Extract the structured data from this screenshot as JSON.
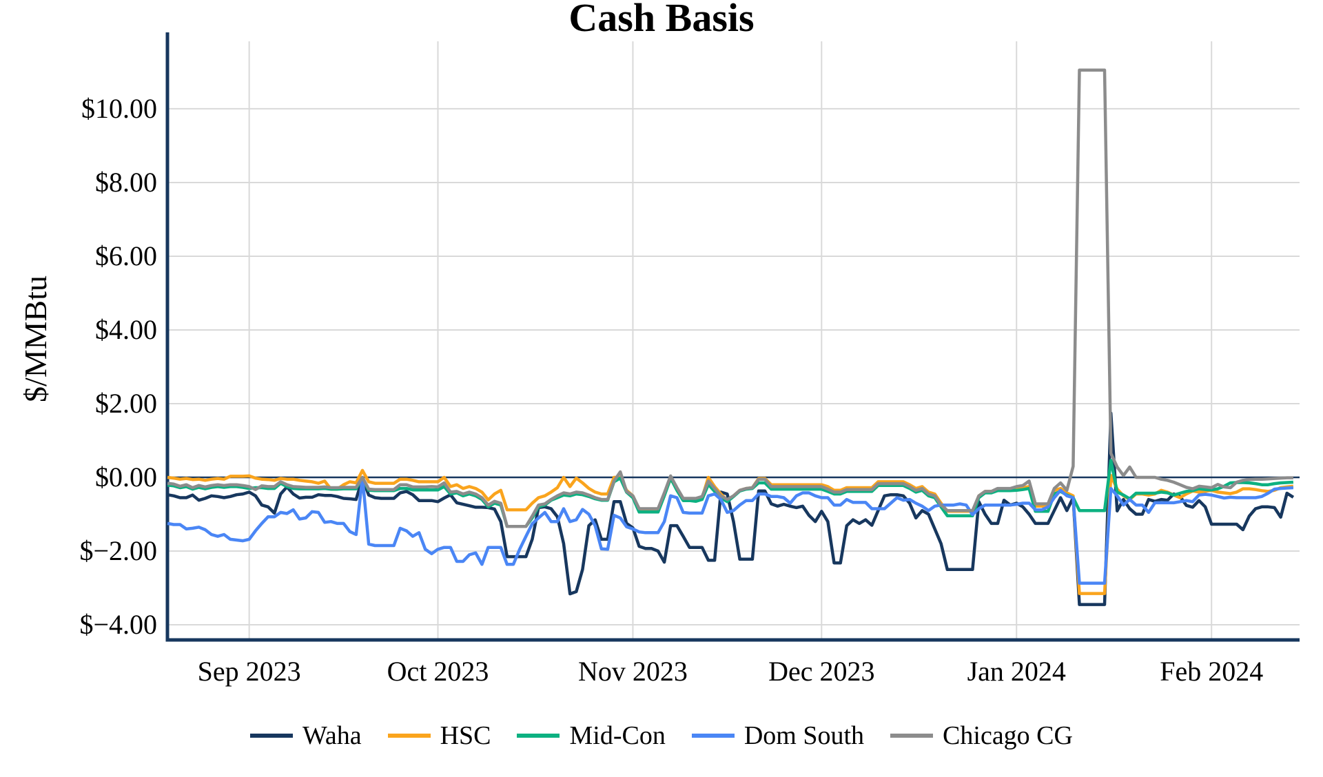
{
  "page": {
    "title": "Cash Basis"
  },
  "colors": {
    "background": "#ffffff",
    "axis": "#17375e",
    "zero_line": "#17375e",
    "grid": "#d9d9d9",
    "text": "#000000"
  },
  "chart_data": {
    "type": "line",
    "title": "Cash Basis",
    "xlabel": "",
    "ylabel": "$/MMBtu",
    "grid": true,
    "legend_position": "bottom",
    "x_description": "daily values from 2023-08-19 to 2024-02-14 (index 0..179)",
    "n_points": 180,
    "x_tick_positions": [
      13,
      43,
      74,
      104,
      135,
      166
    ],
    "x_tick_labels": [
      "Sep 2023",
      "Oct 2023",
      "Nov 2023",
      "Dec 2023",
      "Jan 2024",
      "Feb 2024"
    ],
    "y_tick_values": [
      10,
      8,
      6,
      4,
      2,
      0,
      -2,
      -4
    ],
    "y_tick_labels": [
      "$10.00",
      "$8.00",
      "$6.00",
      "$4.00",
      "$2.00",
      "$0.00",
      "$−2.00",
      "$−4.00"
    ],
    "ylim": [
      -4.41,
      11.83
    ],
    "zero_line": true,
    "series": [
      {
        "name": "Waha",
        "color": "#17375e",
        "values": [
          -0.47,
          -0.5,
          -0.55,
          -0.55,
          -0.48,
          -0.62,
          -0.57,
          -0.5,
          -0.52,
          -0.55,
          -0.52,
          -0.47,
          -0.45,
          -0.4,
          -0.5,
          -0.75,
          -0.8,
          -0.97,
          -0.45,
          -0.26,
          -0.45,
          -0.56,
          -0.54,
          -0.54,
          -0.47,
          -0.49,
          -0.49,
          -0.52,
          -0.57,
          -0.58,
          -0.6,
          -0.02,
          -0.48,
          -0.55,
          -0.57,
          -0.57,
          -0.57,
          -0.42,
          -0.38,
          -0.47,
          -0.63,
          -0.63,
          -0.63,
          -0.66,
          -0.56,
          -0.47,
          -0.69,
          -0.73,
          -0.77,
          -0.81,
          -0.81,
          -0.82,
          -0.86,
          -1.2,
          -2.15,
          -2.15,
          -2.15,
          -2.15,
          -1.68,
          -0.82,
          -0.8,
          -0.85,
          -1.07,
          -1.8,
          -3.16,
          -3.1,
          -2.5,
          -1.31,
          -1.15,
          -1.68,
          -1.68,
          -0.66,
          -0.66,
          -1.25,
          -1.37,
          -1.87,
          -1.93,
          -1.93,
          -2.0,
          -2.3,
          -1.31,
          -1.31,
          -1.6,
          -1.9,
          -1.9,
          -1.9,
          -2.25,
          -2.25,
          -0.4,
          -0.45,
          -1.2,
          -2.22,
          -2.22,
          -2.22,
          -0.37,
          -0.37,
          -0.72,
          -0.78,
          -0.73,
          -0.78,
          -0.82,
          -0.78,
          -1.03,
          -1.2,
          -0.92,
          -1.2,
          -2.32,
          -2.32,
          -1.31,
          -1.15,
          -1.25,
          -1.15,
          -1.3,
          -0.9,
          -0.5,
          -0.47,
          -0.47,
          -0.5,
          -0.7,
          -1.1,
          -0.9,
          -1.0,
          -1.4,
          -1.8,
          -2.5,
          -2.5,
          -2.5,
          -2.5,
          -2.5,
          -0.66,
          -1.0,
          -1.25,
          -1.25,
          -0.62,
          -0.75,
          -0.7,
          -0.8,
          -1.0,
          -1.25,
          -1.25,
          -1.25,
          -0.9,
          -0.55,
          -0.9,
          -0.55,
          -3.45,
          -3.45,
          -3.45,
          -3.45,
          -3.45,
          1.74,
          -0.91,
          -0.6,
          -0.85,
          -1.0,
          -1.0,
          -0.6,
          -0.65,
          -0.6,
          -0.62,
          -0.45,
          -0.52,
          -0.76,
          -0.81,
          -0.63,
          -0.8,
          -1.27,
          -1.27,
          -1.27,
          -1.27,
          -1.27,
          -1.42,
          -1.05,
          -0.85,
          -0.8,
          -0.8,
          -0.82,
          -1.08,
          -0.43,
          -0.54
        ]
      },
      {
        "name": "HSC",
        "color": "#faa41d",
        "values": [
          0.0,
          -0.02,
          -0.05,
          -0.03,
          -0.06,
          -0.05,
          -0.08,
          -0.05,
          -0.03,
          -0.05,
          0.03,
          0.03,
          0.03,
          0.04,
          -0.02,
          -0.05,
          -0.06,
          -0.08,
          -0.03,
          -0.05,
          -0.05,
          -0.08,
          -0.1,
          -0.12,
          -0.16,
          -0.1,
          -0.32,
          -0.32,
          -0.2,
          -0.12,
          -0.15,
          0.19,
          -0.12,
          -0.16,
          -0.16,
          -0.16,
          -0.16,
          -0.05,
          -0.05,
          -0.08,
          -0.12,
          -0.12,
          -0.12,
          -0.12,
          0.0,
          -0.25,
          -0.2,
          -0.3,
          -0.25,
          -0.3,
          -0.4,
          -0.61,
          -0.45,
          -0.35,
          -0.88,
          -0.88,
          -0.88,
          -0.88,
          -0.7,
          -0.55,
          -0.5,
          -0.4,
          -0.28,
          0.0,
          -0.25,
          -0.02,
          -0.15,
          -0.3,
          -0.4,
          -0.45,
          -0.45,
          0.0,
          0.0,
          -0.35,
          -0.5,
          -0.87,
          -0.87,
          -0.87,
          -0.87,
          -0.45,
          -0.04,
          -0.3,
          -0.6,
          -0.6,
          -0.6,
          -0.55,
          0.0,
          -0.25,
          -0.45,
          -0.62,
          -0.5,
          -0.35,
          -0.3,
          -0.28,
          -0.03,
          -0.03,
          -0.2,
          -0.2,
          -0.2,
          -0.2,
          -0.2,
          -0.2,
          -0.2,
          -0.2,
          -0.2,
          -0.25,
          -0.35,
          -0.35,
          -0.28,
          -0.28,
          -0.28,
          -0.28,
          -0.28,
          -0.12,
          -0.12,
          -0.12,
          -0.12,
          -0.12,
          -0.2,
          -0.3,
          -0.25,
          -0.4,
          -0.45,
          -0.7,
          -0.92,
          -0.92,
          -0.92,
          -0.92,
          -0.92,
          -0.5,
          -0.38,
          -0.38,
          -0.33,
          -0.33,
          -0.33,
          -0.3,
          -0.28,
          -0.25,
          -0.78,
          -0.78,
          -0.78,
          -0.35,
          -0.3,
          -0.42,
          -0.5,
          -3.15,
          -3.15,
          -3.15,
          -3.15,
          -3.15,
          0.05,
          -0.32,
          -0.5,
          -0.6,
          -0.45,
          -0.45,
          -0.48,
          -0.45,
          -0.35,
          -0.4,
          -0.48,
          -0.55,
          -0.45,
          -0.37,
          -0.4,
          -0.38,
          -0.35,
          -0.4,
          -0.42,
          -0.44,
          -0.4,
          -0.31,
          -0.31,
          -0.33,
          -0.36,
          -0.38,
          -0.35,
          -0.28,
          -0.26,
          -0.24
        ]
      },
      {
        "name": "Mid-Con",
        "color": "#0db181",
        "values": [
          -0.21,
          -0.23,
          -0.28,
          -0.25,
          -0.32,
          -0.27,
          -0.31,
          -0.27,
          -0.25,
          -0.27,
          -0.25,
          -0.25,
          -0.27,
          -0.3,
          -0.28,
          -0.28,
          -0.3,
          -0.3,
          -0.16,
          -0.25,
          -0.3,
          -0.31,
          -0.31,
          -0.31,
          -0.31,
          -0.3,
          -0.32,
          -0.32,
          -0.31,
          -0.31,
          -0.31,
          -0.02,
          -0.35,
          -0.36,
          -0.36,
          -0.36,
          -0.36,
          -0.3,
          -0.3,
          -0.34,
          -0.34,
          -0.34,
          -0.34,
          -0.34,
          -0.25,
          -0.45,
          -0.42,
          -0.5,
          -0.45,
          -0.5,
          -0.6,
          -0.8,
          -0.7,
          -0.75,
          -1.33,
          -1.33,
          -1.33,
          -1.33,
          -1.1,
          -0.8,
          -0.75,
          -0.62,
          -0.55,
          -0.48,
          -0.5,
          -0.45,
          -0.47,
          -0.52,
          -0.58,
          -0.62,
          -0.62,
          -0.12,
          -0.02,
          -0.4,
          -0.55,
          -0.94,
          -0.94,
          -0.94,
          -0.94,
          -0.5,
          -0.02,
          -0.35,
          -0.63,
          -0.63,
          -0.65,
          -0.6,
          -0.19,
          -0.38,
          -0.55,
          -0.66,
          -0.52,
          -0.37,
          -0.32,
          -0.3,
          -0.15,
          -0.15,
          -0.32,
          -0.32,
          -0.32,
          -0.32,
          -0.32,
          -0.32,
          -0.32,
          -0.32,
          -0.32,
          -0.38,
          -0.45,
          -0.45,
          -0.38,
          -0.38,
          -0.38,
          -0.38,
          -0.38,
          -0.22,
          -0.22,
          -0.22,
          -0.22,
          -0.22,
          -0.3,
          -0.4,
          -0.35,
          -0.5,
          -0.55,
          -0.8,
          -1.04,
          -1.04,
          -1.04,
          -1.04,
          -1.04,
          -0.55,
          -0.42,
          -0.42,
          -0.36,
          -0.36,
          -0.36,
          -0.35,
          -0.33,
          -0.3,
          -0.92,
          -0.92,
          -0.92,
          -0.45,
          -0.38,
          -0.48,
          -0.55,
          -0.9,
          -0.9,
          -0.9,
          -0.9,
          -0.9,
          0.46,
          -0.4,
          -0.48,
          -0.58,
          -0.43,
          -0.43,
          -0.43,
          -0.43,
          -0.4,
          -0.42,
          -0.48,
          -0.43,
          -0.38,
          -0.36,
          -0.31,
          -0.33,
          -0.34,
          -0.31,
          -0.24,
          -0.15,
          -0.14,
          -0.14,
          -0.15,
          -0.17,
          -0.2,
          -0.2,
          -0.17,
          -0.15,
          -0.14,
          -0.13
        ]
      },
      {
        "name": "Dom South",
        "color": "#4a86f5",
        "values": [
          -1.25,
          -1.28,
          -1.28,
          -1.4,
          -1.38,
          -1.35,
          -1.42,
          -1.55,
          -1.6,
          -1.55,
          -1.68,
          -1.7,
          -1.72,
          -1.68,
          -1.45,
          -1.25,
          -1.07,
          -1.07,
          -0.95,
          -0.98,
          -0.88,
          -1.13,
          -1.1,
          -0.93,
          -0.95,
          -1.22,
          -1.2,
          -1.25,
          -1.25,
          -1.47,
          -1.55,
          0.0,
          -1.81,
          -1.85,
          -1.85,
          -1.85,
          -1.85,
          -1.38,
          -1.45,
          -1.6,
          -1.5,
          -1.95,
          -2.07,
          -1.95,
          -1.9,
          -1.9,
          -2.28,
          -2.28,
          -2.1,
          -2.05,
          -2.36,
          -1.9,
          -1.9,
          -1.9,
          -2.36,
          -2.36,
          -1.95,
          -1.6,
          -1.26,
          -1.1,
          -0.95,
          -1.2,
          -1.2,
          -0.85,
          -1.2,
          -1.15,
          -0.87,
          -1.0,
          -1.31,
          -1.94,
          -1.95,
          -1.03,
          -1.1,
          -1.34,
          -1.4,
          -1.48,
          -1.5,
          -1.5,
          -1.5,
          -1.2,
          -0.5,
          -0.55,
          -0.95,
          -0.97,
          -0.97,
          -0.97,
          -0.5,
          -0.45,
          -0.6,
          -0.95,
          -0.9,
          -0.75,
          -0.63,
          -0.63,
          -0.45,
          -0.45,
          -0.52,
          -0.52,
          -0.55,
          -0.7,
          -0.5,
          -0.42,
          -0.42,
          -0.5,
          -0.55,
          -0.55,
          -0.75,
          -0.75,
          -0.6,
          -0.68,
          -0.68,
          -0.68,
          -0.85,
          -0.85,
          -0.85,
          -0.7,
          -0.55,
          -0.62,
          -0.6,
          -0.7,
          -0.78,
          -0.9,
          -0.78,
          -0.75,
          -0.75,
          -0.75,
          -0.72,
          -0.75,
          -1.01,
          -0.85,
          -0.75,
          -0.75,
          -0.75,
          -0.75,
          -0.75,
          -0.73,
          -0.7,
          -0.7,
          -0.88,
          -0.88,
          -0.8,
          -0.55,
          -0.35,
          -0.5,
          -0.55,
          -2.87,
          -2.87,
          -2.87,
          -2.87,
          -2.87,
          -0.3,
          -0.5,
          -0.75,
          -0.6,
          -0.75,
          -0.75,
          -0.95,
          -0.69,
          -0.69,
          -0.69,
          -0.69,
          -0.66,
          -0.63,
          -0.66,
          -0.48,
          -0.46,
          -0.48,
          -0.52,
          -0.56,
          -0.54,
          -0.55,
          -0.55,
          -0.55,
          -0.55,
          -0.52,
          -0.43,
          -0.32,
          -0.3,
          -0.29,
          -0.28
        ]
      },
      {
        "name": "Chicago CG",
        "color": "#8c8c8c",
        "values": [
          -0.16,
          -0.18,
          -0.24,
          -0.2,
          -0.28,
          -0.22,
          -0.26,
          -0.22,
          -0.2,
          -0.22,
          -0.2,
          -0.2,
          -0.22,
          -0.25,
          -0.33,
          -0.23,
          -0.25,
          -0.25,
          -0.12,
          -0.2,
          -0.25,
          -0.26,
          -0.27,
          -0.27,
          -0.27,
          -0.26,
          -0.28,
          -0.28,
          -0.27,
          -0.27,
          -0.27,
          0.0,
          -0.32,
          -0.33,
          -0.33,
          -0.33,
          -0.33,
          -0.2,
          -0.2,
          -0.26,
          -0.26,
          -0.26,
          -0.25,
          -0.26,
          -0.15,
          -0.4,
          -0.38,
          -0.45,
          -0.4,
          -0.45,
          -0.55,
          -0.75,
          -0.65,
          -0.7,
          -1.33,
          -1.33,
          -1.33,
          -1.33,
          -1.05,
          -0.75,
          -0.72,
          -0.6,
          -0.5,
          -0.42,
          -0.45,
          -0.4,
          -0.42,
          -0.48,
          -0.55,
          -0.6,
          -0.6,
          -0.1,
          0.15,
          -0.38,
          -0.5,
          -0.85,
          -0.85,
          -0.85,
          -0.85,
          -0.42,
          0.04,
          -0.28,
          -0.57,
          -0.57,
          -0.57,
          -0.52,
          -0.1,
          -0.3,
          -0.5,
          -0.6,
          -0.5,
          -0.35,
          -0.3,
          -0.28,
          -0.05,
          -0.05,
          -0.25,
          -0.25,
          -0.25,
          -0.25,
          -0.25,
          -0.25,
          -0.25,
          -0.25,
          -0.25,
          -0.32,
          -0.4,
          -0.4,
          -0.33,
          -0.33,
          -0.33,
          -0.33,
          -0.33,
          -0.17,
          -0.17,
          -0.17,
          -0.17,
          -0.17,
          -0.25,
          -0.35,
          -0.3,
          -0.45,
          -0.5,
          -0.75,
          -0.9,
          -0.9,
          -0.9,
          -0.9,
          -0.9,
          -0.5,
          -0.38,
          -0.38,
          -0.3,
          -0.3,
          -0.3,
          -0.25,
          -0.22,
          -0.1,
          -0.72,
          -0.72,
          -0.72,
          -0.3,
          -0.15,
          -0.35,
          0.3,
          11.05,
          11.05,
          11.05,
          11.05,
          11.05,
          0.65,
          0.28,
          0.05,
          0.28,
          0.0,
          0.0,
          0.0,
          0.0,
          -0.05,
          -0.08,
          -0.13,
          -0.2,
          -0.27,
          -0.31,
          -0.24,
          -0.26,
          -0.28,
          -0.19,
          -0.26,
          -0.28,
          -0.13,
          -0.08,
          -0.06,
          -0.05,
          -0.05,
          -0.04,
          -0.03,
          -0.02,
          -0.01,
          -0.01
        ]
      }
    ]
  }
}
